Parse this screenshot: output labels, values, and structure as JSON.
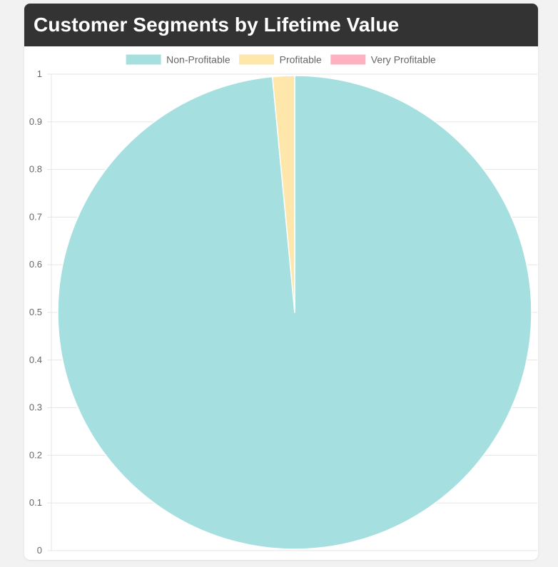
{
  "header": {
    "title": "Customer Segments by Lifetime Value"
  },
  "chart_data": {
    "type": "pie",
    "categories": [
      "Non-Profitable",
      "Profitable",
      "Very Profitable"
    ],
    "values": [
      98.5,
      1.5,
      0
    ],
    "colors": [
      "#a6dfdf",
      "#ffe6aa",
      "#ffb1c1"
    ],
    "legend_position": "top",
    "y_axis_ticks": [
      "0",
      "0.1",
      "0.2",
      "0.3",
      "0.4",
      "0.5",
      "0.6",
      "0.7",
      "0.8",
      "0.9",
      "1"
    ],
    "ylim": [
      0,
      1
    ],
    "grid": true
  }
}
